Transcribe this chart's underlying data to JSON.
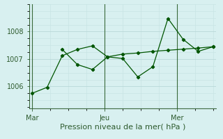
{
  "xlabel": "Pression niveau de la mer( hPa )",
  "background_color": "#d8f0f0",
  "grid_color_major": "#b8d8d8",
  "grid_color_minor": "#c8e4e4",
  "line_color": "#005500",
  "yticks": [
    1006,
    1007,
    1008
  ],
  "ylim": [
    1005.2,
    1009.0
  ],
  "xlim": [
    -0.2,
    12.2
  ],
  "xtick_positions": [
    0,
    4.8,
    9.6
  ],
  "xtick_labels": [
    "Mar",
    "Jeu",
    "Mer"
  ],
  "vline_positions": [
    0,
    4.8,
    9.6
  ],
  "s1x": [
    0,
    1,
    2,
    3,
    4,
    5,
    6,
    7,
    8,
    9,
    10,
    11,
    12
  ],
  "s1y": [
    1005.75,
    1005.97,
    1007.12,
    1007.35,
    1007.48,
    1007.08,
    1007.18,
    1007.22,
    1007.28,
    1007.32,
    1007.36,
    1007.4,
    1007.45
  ],
  "s2x": [
    2,
    3,
    4,
    5,
    6,
    7,
    8,
    9,
    10,
    11,
    12
  ],
  "s2y": [
    1007.35,
    1006.8,
    1006.62,
    1007.08,
    1007.02,
    1006.35,
    1006.72,
    1008.48,
    1007.72,
    1007.28,
    1007.45
  ],
  "xlabel_fontsize": 8,
  "tick_fontsize": 7,
  "text_color": "#2d5a2d"
}
